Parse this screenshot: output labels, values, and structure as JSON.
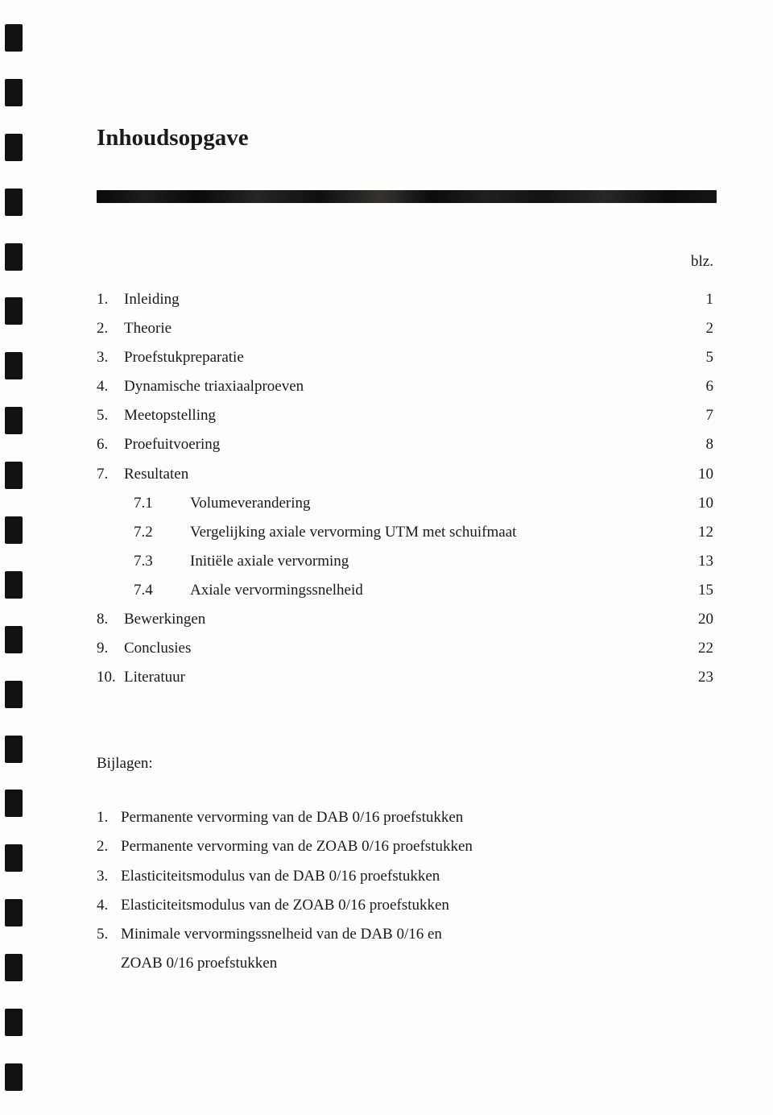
{
  "title": "Inhoudsopgave",
  "page_column_header": "blz.",
  "toc": [
    {
      "num": "1.",
      "label": "Inleiding",
      "page": "1",
      "sub": false
    },
    {
      "num": "2.",
      "label": "Theorie",
      "page": "2",
      "sub": false
    },
    {
      "num": "3.",
      "label": "Proefstukpreparatie",
      "page": "5",
      "sub": false
    },
    {
      "num": "4.",
      "label": "Dynamische triaxiaalproeven",
      "page": "6",
      "sub": false
    },
    {
      "num": "5.",
      "label": "Meetopstelling",
      "page": "7",
      "sub": false
    },
    {
      "num": "6.",
      "label": "Proefuitvoering",
      "page": "8",
      "sub": false
    },
    {
      "num": "7.",
      "label": "Resultaten",
      "page": "10",
      "sub": false
    },
    {
      "num": "7.1",
      "label": "Volumeverandering",
      "page": "10",
      "sub": true
    },
    {
      "num": "7.2",
      "label": "Vergelijking axiale vervorming UTM met schuifmaat",
      "page": "12",
      "sub": true
    },
    {
      "num": "7.3",
      "label": "Initiële axiale vervorming",
      "page": "13",
      "sub": true
    },
    {
      "num": "7.4",
      "label": "Axiale vervormingssnelheid",
      "page": "15",
      "sub": true
    },
    {
      "num": "8.",
      "label": "Bewerkingen",
      "page": "20",
      "sub": false
    },
    {
      "num": "9.",
      "label": "Conclusies",
      "page": "22",
      "sub": false
    },
    {
      "num": "10.",
      "label": "Literatuur",
      "page": "23",
      "sub": false
    }
  ],
  "bijlagen_heading": "Bijlagen:",
  "bijlagen": [
    {
      "num": "1.",
      "label": "Permanente vervorming van de DAB 0/16 proefstukken"
    },
    {
      "num": "2.",
      "label": "Permanente vervorming van de ZOAB 0/16 proefstukken"
    },
    {
      "num": "3.",
      "label": "Elasticiteitsmodulus van de DAB 0/16 proefstukken"
    },
    {
      "num": "4.",
      "label": "Elasticiteitsmodulus van de ZOAB 0/16 proefstukken"
    },
    {
      "num": "5.",
      "label": "Minimale vervormingssnelheid van de DAB 0/16 en"
    }
  ],
  "bijlagen_cont": "ZOAB 0/16 proefstukken",
  "colors": {
    "background": "#fdfdfb",
    "text": "#1a1a1a",
    "binding_mark": "#111111"
  },
  "typography": {
    "title_fontsize_pt": 22,
    "body_fontsize_pt": 14,
    "font_family": "serif"
  },
  "binding_mark_count": 20
}
